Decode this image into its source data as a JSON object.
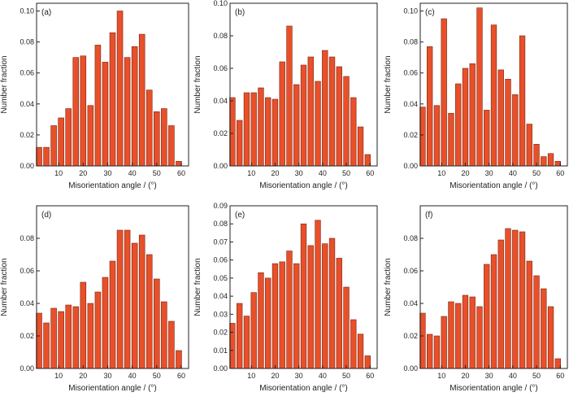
{
  "chart_data": [
    {
      "type": "bar",
      "panel_label": "(a)",
      "xlabel": "Misorientation angle / (°)",
      "ylabel": "Number fraction",
      "xlim": [
        1,
        63
      ],
      "ylim": [
        0,
        0.105
      ],
      "xticks": [
        10,
        20,
        30,
        40,
        50,
        60
      ],
      "yticks": [
        0.0,
        0.02,
        0.04,
        0.06,
        0.08,
        0.1
      ],
      "ytick_labels": [
        "0.00",
        "0.02",
        "0.04",
        "0.06",
        "0.08",
        "0.10"
      ],
      "x": [
        2,
        5,
        8,
        11,
        14,
        17,
        20,
        23,
        26,
        29,
        32,
        35,
        38,
        41,
        44,
        47,
        50,
        53,
        56,
        59,
        62
      ],
      "values": [
        0.012,
        0.012,
        0.026,
        0.031,
        0.037,
        0.07,
        0.071,
        0.039,
        0.078,
        0.067,
        0.086,
        0.1,
        0.07,
        0.077,
        0.085,
        0.049,
        0.035,
        0.037,
        0.026,
        0.003,
        0.0
      ]
    },
    {
      "type": "bar",
      "panel_label": "(b)",
      "xlabel": "Misorientation angle / (°)",
      "ylabel": "Number fraction",
      "xlim": [
        1,
        63
      ],
      "ylim": [
        0,
        0.1
      ],
      "xticks": [
        10,
        20,
        30,
        40,
        50,
        60
      ],
      "yticks": [
        0.0,
        0.02,
        0.04,
        0.06,
        0.08,
        0.1
      ],
      "ytick_labels": [
        "0.00",
        "0.02",
        "0.04",
        "0.06",
        "0.08",
        "0.10"
      ],
      "x": [
        2,
        5,
        8,
        11,
        14,
        17,
        20,
        23,
        26,
        29,
        32,
        35,
        38,
        41,
        44,
        47,
        50,
        53,
        56,
        59,
        62
      ],
      "values": [
        0.042,
        0.028,
        0.045,
        0.045,
        0.048,
        0.042,
        0.041,
        0.064,
        0.086,
        0.05,
        0.062,
        0.067,
        0.052,
        0.071,
        0.067,
        0.061,
        0.055,
        0.042,
        0.024,
        0.007,
        0.0
      ]
    },
    {
      "type": "bar",
      "panel_label": "(c)",
      "xlabel": "Misorientation angle / (°)",
      "ylabel": "Number fraction",
      "xlim": [
        1,
        63
      ],
      "ylim": [
        0,
        0.105
      ],
      "xticks": [
        10,
        20,
        30,
        40,
        50,
        60
      ],
      "yticks": [
        0.0,
        0.02,
        0.04,
        0.06,
        0.08,
        0.1
      ],
      "ytick_labels": [
        "0.00",
        "0.02",
        "0.04",
        "0.06",
        "0.08",
        "0.10"
      ],
      "x": [
        2,
        5,
        8,
        11,
        14,
        17,
        20,
        23,
        26,
        29,
        32,
        35,
        38,
        41,
        44,
        47,
        50,
        53,
        56,
        59,
        62
      ],
      "values": [
        0.038,
        0.077,
        0.039,
        0.095,
        0.034,
        0.053,
        0.063,
        0.066,
        0.102,
        0.036,
        0.091,
        0.062,
        0.056,
        0.046,
        0.084,
        0.027,
        0.014,
        0.006,
        0.008,
        0.003,
        0.0
      ]
    },
    {
      "type": "bar",
      "panel_label": "(d)",
      "xlabel": "Misorientation angle / (°)",
      "ylabel": "Number fraction",
      "xlim": [
        1,
        63
      ],
      "ylim": [
        0,
        0.1
      ],
      "xticks": [
        10,
        20,
        30,
        40,
        50,
        60
      ],
      "yticks": [
        0.0,
        0.02,
        0.04,
        0.06,
        0.08
      ],
      "ytick_labels": [
        "0.00",
        "0.02",
        "0.04",
        "0.06",
        "0.08"
      ],
      "x": [
        2,
        5,
        8,
        11,
        14,
        17,
        20,
        23,
        26,
        29,
        32,
        35,
        38,
        41,
        44,
        47,
        50,
        53,
        56,
        59,
        62
      ],
      "values": [
        0.034,
        0.028,
        0.037,
        0.035,
        0.039,
        0.038,
        0.053,
        0.04,
        0.047,
        0.056,
        0.066,
        0.085,
        0.085,
        0.077,
        0.082,
        0.07,
        0.055,
        0.041,
        0.029,
        0.011,
        0.0
      ]
    },
    {
      "type": "bar",
      "panel_label": "(e)",
      "xlabel": "Misorientation angle / (°)",
      "ylabel": "Number fraction",
      "xlim": [
        1,
        63
      ],
      "ylim": [
        0,
        0.09
      ],
      "xticks": [
        10,
        20,
        30,
        40,
        50,
        60
      ],
      "yticks": [
        0.0,
        0.01,
        0.02,
        0.03,
        0.04,
        0.05,
        0.06,
        0.07,
        0.08,
        0.09
      ],
      "ytick_labels": [
        "0.00",
        "0.01",
        "0.02",
        "0.03",
        "0.04",
        "0.05",
        "0.06",
        "0.07",
        "0.08",
        "0.09"
      ],
      "x": [
        2,
        5,
        8,
        11,
        14,
        17,
        20,
        23,
        26,
        29,
        32,
        35,
        38,
        41,
        44,
        47,
        50,
        53,
        56,
        59,
        62
      ],
      "values": [
        0.025,
        0.036,
        0.029,
        0.042,
        0.053,
        0.05,
        0.058,
        0.059,
        0.065,
        0.058,
        0.08,
        0.068,
        0.082,
        0.069,
        0.072,
        0.061,
        0.045,
        0.027,
        0.019,
        0.007,
        0.0
      ]
    },
    {
      "type": "bar",
      "panel_label": "(f)",
      "xlabel": "Misorientation angle / (°)",
      "ylabel": "Number fraction",
      "xlim": [
        1,
        63
      ],
      "ylim": [
        0,
        0.1
      ],
      "xticks": [
        10,
        20,
        30,
        40,
        50,
        60
      ],
      "yticks": [
        0.0,
        0.02,
        0.04,
        0.06,
        0.08
      ],
      "ytick_labels": [
        "0.00",
        "0.02",
        "0.04",
        "0.06",
        "0.08"
      ],
      "x": [
        2,
        5,
        8,
        11,
        14,
        17,
        20,
        23,
        26,
        29,
        32,
        35,
        38,
        41,
        44,
        47,
        50,
        53,
        56,
        59,
        62
      ],
      "values": [
        0.034,
        0.021,
        0.02,
        0.032,
        0.041,
        0.04,
        0.045,
        0.044,
        0.038,
        0.064,
        0.07,
        0.079,
        0.086,
        0.085,
        0.084,
        0.066,
        0.057,
        0.049,
        0.038,
        0.006,
        0.0
      ]
    }
  ],
  "colors": {
    "bar_fill": "#e8502a",
    "bar_stroke": "#7a2410",
    "axis": "#222222"
  }
}
